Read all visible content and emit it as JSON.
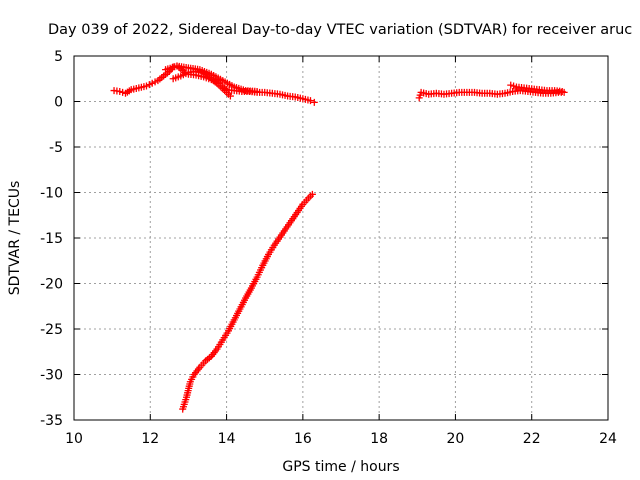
{
  "chart_data": {
    "type": "scatter",
    "title": "Day 039 of 2022, Sidereal Day-to-day VTEC variation (SDTVAR) for receiver aruc",
    "xlabel": "GPS time / hours",
    "ylabel": "SDTVAR / TECUs",
    "xlim": [
      10,
      24
    ],
    "ylim": [
      -35,
      5
    ],
    "x_ticks": [
      10,
      12,
      14,
      16,
      18,
      20,
      22,
      24
    ],
    "y_ticks": [
      5,
      0,
      -5,
      -10,
      -15,
      -20,
      -25,
      -30,
      -35
    ],
    "grid": true,
    "legend": "none",
    "marker": "plus",
    "color": "#ff0000",
    "series": [
      {
        "points": [
          [
            11.05,
            1.2
          ],
          [
            11.2,
            1.1
          ],
          [
            11.35,
            0.9
          ],
          [
            11.5,
            1.3
          ],
          [
            11.7,
            1.5
          ],
          [
            11.9,
            1.7
          ],
          [
            12.05,
            2.0
          ],
          [
            12.2,
            2.3
          ],
          [
            12.35,
            2.8
          ],
          [
            12.5,
            3.3
          ],
          [
            12.6,
            3.8
          ],
          [
            12.7,
            3.9
          ],
          [
            12.8,
            3.6
          ],
          [
            12.9,
            3.2
          ],
          [
            13.0,
            3.0
          ],
          [
            13.2,
            2.9
          ],
          [
            13.4,
            2.7
          ],
          [
            13.6,
            2.4
          ],
          [
            13.8,
            2.0
          ],
          [
            13.9,
            1.6
          ],
          [
            14.0,
            1.3
          ],
          [
            14.2,
            1.2
          ],
          [
            14.4,
            1.1
          ],
          [
            14.6,
            1.1
          ],
          [
            14.8,
            1.0
          ],
          [
            15.0,
            1.0
          ],
          [
            15.2,
            0.9
          ],
          [
            15.4,
            0.8
          ],
          [
            15.6,
            0.6
          ],
          [
            15.8,
            0.5
          ],
          [
            16.0,
            0.3
          ],
          [
            16.2,
            0.1
          ],
          [
            16.3,
            -0.1
          ]
        ]
      },
      {
        "points": [
          [
            12.6,
            2.5
          ],
          [
            12.8,
            2.8
          ],
          [
            13.0,
            3.2
          ],
          [
            13.2,
            3.3
          ],
          [
            13.4,
            3.1
          ],
          [
            13.6,
            2.5
          ],
          [
            13.8,
            1.8
          ],
          [
            14.0,
            1.0
          ],
          [
            14.1,
            0.6
          ]
        ]
      },
      {
        "points": [
          [
            12.4,
            3.5
          ],
          [
            12.7,
            3.9
          ],
          [
            13.0,
            3.7
          ],
          [
            13.3,
            3.5
          ],
          [
            13.6,
            3.0
          ],
          [
            13.9,
            2.3
          ],
          [
            14.2,
            1.6
          ],
          [
            14.5,
            1.2
          ],
          [
            14.8,
            1.1
          ]
        ]
      },
      {
        "points": [
          [
            12.85,
            -33.8
          ],
          [
            12.95,
            -32.5
          ],
          [
            13.05,
            -30.8
          ],
          [
            13.15,
            -30.0
          ],
          [
            13.3,
            -29.2
          ],
          [
            13.45,
            -28.5
          ],
          [
            13.6,
            -28.0
          ],
          [
            13.75,
            -27.2
          ],
          [
            13.9,
            -26.2
          ],
          [
            14.05,
            -25.2
          ],
          [
            14.2,
            -24.0
          ],
          [
            14.35,
            -22.8
          ],
          [
            14.5,
            -21.6
          ],
          [
            14.65,
            -20.5
          ],
          [
            14.8,
            -19.3
          ],
          [
            14.95,
            -18.0
          ],
          [
            15.1,
            -16.8
          ],
          [
            15.25,
            -15.8
          ],
          [
            15.4,
            -14.9
          ],
          [
            15.55,
            -14.0
          ],
          [
            15.7,
            -13.1
          ],
          [
            15.85,
            -12.2
          ],
          [
            16.0,
            -11.3
          ],
          [
            16.15,
            -10.6
          ],
          [
            16.25,
            -10.2
          ]
        ]
      },
      {
        "points": [
          [
            19.05,
            0.4
          ],
          [
            19.1,
            1.0
          ],
          [
            19.3,
            0.8
          ],
          [
            19.5,
            0.9
          ],
          [
            19.7,
            0.8
          ],
          [
            19.9,
            0.9
          ],
          [
            20.1,
            1.0
          ],
          [
            20.3,
            1.0
          ],
          [
            20.5,
            1.0
          ],
          [
            20.7,
            0.9
          ],
          [
            20.9,
            0.9
          ],
          [
            21.1,
            0.8
          ],
          [
            21.3,
            0.9
          ],
          [
            21.5,
            1.1
          ],
          [
            21.7,
            1.2
          ],
          [
            21.9,
            1.1
          ],
          [
            22.1,
            1.0
          ],
          [
            22.3,
            0.9
          ],
          [
            22.5,
            0.9
          ],
          [
            22.7,
            1.0
          ],
          [
            22.85,
            1.0
          ]
        ]
      },
      {
        "points": [
          [
            21.45,
            1.8
          ],
          [
            21.6,
            1.6
          ],
          [
            21.8,
            1.5
          ],
          [
            22.0,
            1.4
          ],
          [
            22.2,
            1.3
          ],
          [
            22.4,
            1.2
          ],
          [
            22.6,
            1.2
          ],
          [
            22.8,
            1.1
          ]
        ]
      }
    ]
  }
}
